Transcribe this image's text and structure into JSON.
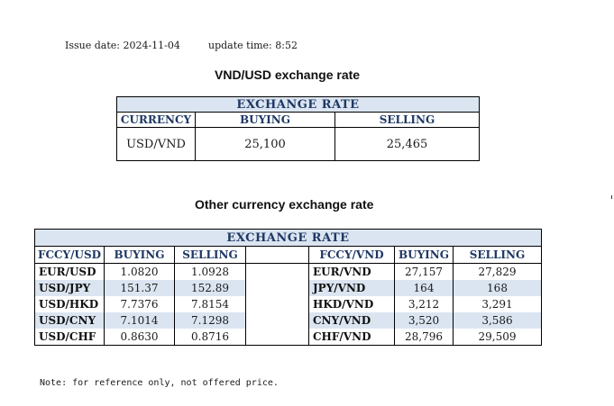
{
  "issue": {
    "issue_label": "Issue date:",
    "issue_date": "2024-11-04",
    "update_label": "update time:",
    "update_time": "8:52"
  },
  "main_title": "VND/USD exchange rate",
  "main_table": {
    "header": "EXCHANGE RATE",
    "columns": [
      "CURRENCY",
      "BUYING",
      "SELLING"
    ],
    "row": {
      "currency": "USD/VND",
      "buying": "25,100",
      "selling": "25,465"
    }
  },
  "other_title": "Other currency exchange rate",
  "other_table": {
    "header": "EXCHANGE  RATE",
    "left_columns": [
      "FCCY/USD",
      "BUYING",
      "SELLING"
    ],
    "right_columns": [
      "FCCY/VND",
      "BUYING",
      "SELLING"
    ],
    "rows": [
      {
        "l_pair": "EUR/USD",
        "l_buy": "1.0820",
        "l_sell": "1.0928",
        "r_pair": "EUR/VND",
        "r_buy": "27,157",
        "r_sell": "27,829"
      },
      {
        "l_pair": "USD/JPY",
        "l_buy": "151.37",
        "l_sell": "152.89",
        "r_pair": "JPY/VND",
        "r_buy": "164",
        "r_sell": "168"
      },
      {
        "l_pair": "USD/HKD",
        "l_buy": "7.7376",
        "l_sell": "7.8154",
        "r_pair": "HKD/VND",
        "r_buy": "3,212",
        "r_sell": "3,291"
      },
      {
        "l_pair": "USD/CNY",
        "l_buy": "7.1014",
        "l_sell": "7.1298",
        "r_pair": "CNY/VND",
        "r_buy": "3,520",
        "r_sell": "3,586"
      },
      {
        "l_pair": "USD/CHF",
        "l_buy": "0.8630",
        "l_sell": "0.8716",
        "r_pair": "CHF/VND",
        "r_buy": "28,796",
        "r_sell": "29,509"
      }
    ]
  },
  "note": "Note: for reference only, not offered price.",
  "colors": {
    "header_text": "#1f3864",
    "band": "#dbe5f1"
  }
}
